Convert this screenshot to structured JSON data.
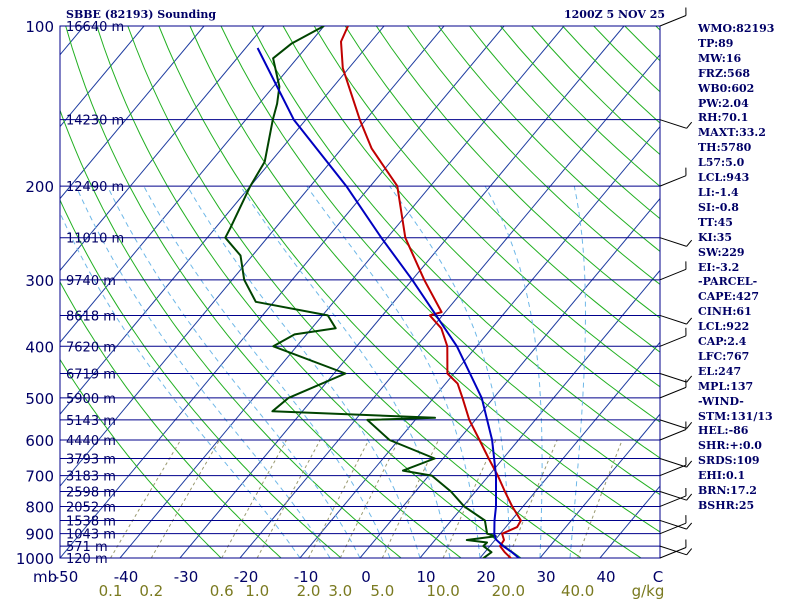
{
  "title": {
    "station": "SBBE (82193) Sounding",
    "valid_time": "1200Z  5 NOV 25"
  },
  "indices": [
    "WMO:82193",
    "TP:89",
    "MW:16",
    "FRZ:568",
    "WB0:602",
    "PW:2.04",
    "RH:70.1",
    "MAXT:33.2",
    "TH:5780",
    "L57:5.0",
    "LCL:943",
    "LI:-1.4",
    "SI:-0.8",
    "TT:45",
    "KI:35",
    "SW:229",
    "EI:-3.2",
    "-PARCEL-",
    "CAPE:427",
    "CINH:61",
    "LCL:922",
    "CAP:2.4",
    "LFC:767",
    "EL:247",
    "MPL:137",
    "-WIND-",
    "STM:131/13",
    "HEL:-86",
    "SHR:+:0.0",
    "SRDS:109",
    "EHI:0.1",
    "BRN:17.2",
    "BSHR:25"
  ],
  "colors": {
    "background": "#ffffff",
    "isobar": "#00008b",
    "isotherm": "#1e3ca0",
    "dry_adiabat": "#22b022",
    "moist_adiabat": "#6fb8e8",
    "mixing_ratio": "#9a9a70",
    "temperature": "#c00000",
    "dewpoint": "#004400",
    "parcel": "#0000c0",
    "wind_barb": "#000000",
    "label_text": "#000066",
    "mixing_label": "#7a7a20"
  },
  "chart_data": {
    "type": "skew-t",
    "title": "SBBE (82193) Sounding",
    "time": "1200Z  5 NOV 25",
    "xlabel": "C",
    "mixing_ratio_unit": "g/kg",
    "pressure_axis_label": "mb",
    "plim_hPa": [
      1000,
      100
    ],
    "tlim_C_at_1000hPa": [
      -50,
      50
    ],
    "pressure_ticks": [
      100,
      200,
      300,
      400,
      500,
      600,
      700,
      800,
      900,
      1000
    ],
    "temperature_ticks": [
      -50,
      -40,
      -30,
      -20,
      -10,
      0,
      10,
      20,
      30,
      40
    ],
    "mixing_ratio_ticks": [
      "0.1",
      "0.2",
      "0.6",
      "1.0",
      "2.0",
      "3.0",
      "5.0",
      "10.0",
      "20.0",
      "40.0"
    ],
    "height_labels": [
      {
        "p": 100,
        "label": "16640 m"
      },
      {
        "p": 150,
        "label": "14230 m"
      },
      {
        "p": 200,
        "label": "12490 m"
      },
      {
        "p": 250,
        "label": "11010 m"
      },
      {
        "p": 300,
        "label": "9740 m"
      },
      {
        "p": 350,
        "label": "8618 m"
      },
      {
        "p": 400,
        "label": "7620 m"
      },
      {
        "p": 450,
        "label": "6719 m"
      },
      {
        "p": 500,
        "label": "5900 m"
      },
      {
        "p": 550,
        "label": "5143 m"
      },
      {
        "p": 600,
        "label": "4440 m"
      },
      {
        "p": 650,
        "label": "3793 m"
      },
      {
        "p": 700,
        "label": "3183 m"
      },
      {
        "p": 750,
        "label": "2598 m"
      },
      {
        "p": 800,
        "label": "2052 m"
      },
      {
        "p": 850,
        "label": "1538 m"
      },
      {
        "p": 900,
        "label": "1043 m"
      },
      {
        "p": 950,
        "label": "571 m"
      },
      {
        "p": 1000,
        "label": "120 m"
      }
    ],
    "temperature": [
      {
        "p": 1005,
        "t": 25.5
      },
      {
        "p": 975,
        "t": 23.3
      },
      {
        "p": 950,
        "t": 21.7
      },
      {
        "p": 925,
        "t": 21.5
      },
      {
        "p": 900,
        "t": 20.3
      },
      {
        "p": 875,
        "t": 21.9
      },
      {
        "p": 850,
        "t": 21.6
      },
      {
        "p": 800,
        "t": 18.2
      },
      {
        "p": 750,
        "t": 14.9
      },
      {
        "p": 700,
        "t": 11.5
      },
      {
        "p": 650,
        "t": 7.6
      },
      {
        "p": 600,
        "t": 3.5
      },
      {
        "p": 550,
        "t": -1.0
      },
      {
        "p": 500,
        "t": -5.2
      },
      {
        "p": 470,
        "t": -8.0
      },
      {
        "p": 450,
        "t": -11.1
      },
      {
        "p": 400,
        "t": -14.9
      },
      {
        "p": 370,
        "t": -18.4
      },
      {
        "p": 350,
        "t": -22.1
      },
      {
        "p": 345,
        "t": -20.6
      },
      {
        "p": 300,
        "t": -28.0
      },
      {
        "p": 250,
        "t": -37.0
      },
      {
        "p": 200,
        "t": -45.5
      },
      {
        "p": 170,
        "t": -55.0
      },
      {
        "p": 150,
        "t": -61.0
      },
      {
        "p": 120,
        "t": -71.0
      },
      {
        "p": 107,
        "t": -75.0
      },
      {
        "p": 100,
        "t": -76.0
      }
    ],
    "dewpoint": [
      {
        "p": 1005,
        "t": 20.5
      },
      {
        "p": 975,
        "t": 21.1
      },
      {
        "p": 950,
        "t": 18.9
      },
      {
        "p": 935,
        "t": 19.0
      },
      {
        "p": 925,
        "t": 15.3
      },
      {
        "p": 910,
        "t": 19.6
      },
      {
        "p": 900,
        "t": 17.8
      },
      {
        "p": 850,
        "t": 15.6
      },
      {
        "p": 800,
        "t": 10.2
      },
      {
        "p": 750,
        "t": 5.9
      },
      {
        "p": 700,
        "t": 0.5
      },
      {
        "p": 685,
        "t": -5.0
      },
      {
        "p": 650,
        "t": -1.4
      },
      {
        "p": 600,
        "t": -11.5
      },
      {
        "p": 550,
        "t": -18.0
      },
      {
        "p": 545,
        "t": -7.0
      },
      {
        "p": 530,
        "t": -35.0
      },
      {
        "p": 500,
        "t": -34.2
      },
      {
        "p": 450,
        "t": -28.1
      },
      {
        "p": 400,
        "t": -43.9
      },
      {
        "p": 380,
        "t": -42.0
      },
      {
        "p": 370,
        "t": -36.0
      },
      {
        "p": 350,
        "t": -39.1
      },
      {
        "p": 330,
        "t": -53.0
      },
      {
        "p": 300,
        "t": -58.0
      },
      {
        "p": 270,
        "t": -62.0
      },
      {
        "p": 250,
        "t": -67.0
      },
      {
        "p": 240,
        "t": -67.5
      },
      {
        "p": 200,
        "t": -70.0
      },
      {
        "p": 180,
        "t": -71.0
      },
      {
        "p": 150,
        "t": -75.5
      },
      {
        "p": 140,
        "t": -77.0
      },
      {
        "p": 130,
        "t": -79.0
      },
      {
        "p": 115,
        "t": -84.0
      },
      {
        "p": 108,
        "t": -83.0
      },
      {
        "p": 100,
        "t": -80.0
      }
    ],
    "parcel": [
      {
        "p": 1000,
        "t": 26.5
      },
      {
        "p": 975,
        "t": 24.5
      },
      {
        "p": 950,
        "t": 22.2
      },
      {
        "p": 922,
        "t": 20.0
      },
      {
        "p": 900,
        "t": 19.0
      },
      {
        "p": 850,
        "t": 17.2
      },
      {
        "p": 800,
        "t": 15.5
      },
      {
        "p": 700,
        "t": 11.2
      },
      {
        "p": 600,
        "t": 5.6
      },
      {
        "p": 500,
        "t": -2.0
      },
      {
        "p": 400,
        "t": -13.3
      },
      {
        "p": 300,
        "t": -30.0
      },
      {
        "p": 250,
        "t": -41.0
      },
      {
        "p": 200,
        "t": -54.0
      },
      {
        "p": 150,
        "t": -72.0
      },
      {
        "p": 110,
        "t": -88.0
      }
    ],
    "wind_profile_pressures": [
      1000,
      950,
      900,
      850,
      800,
      750,
      700,
      650,
      600,
      550,
      500,
      450,
      400,
      350,
      300,
      250,
      200,
      150,
      100
    ]
  }
}
